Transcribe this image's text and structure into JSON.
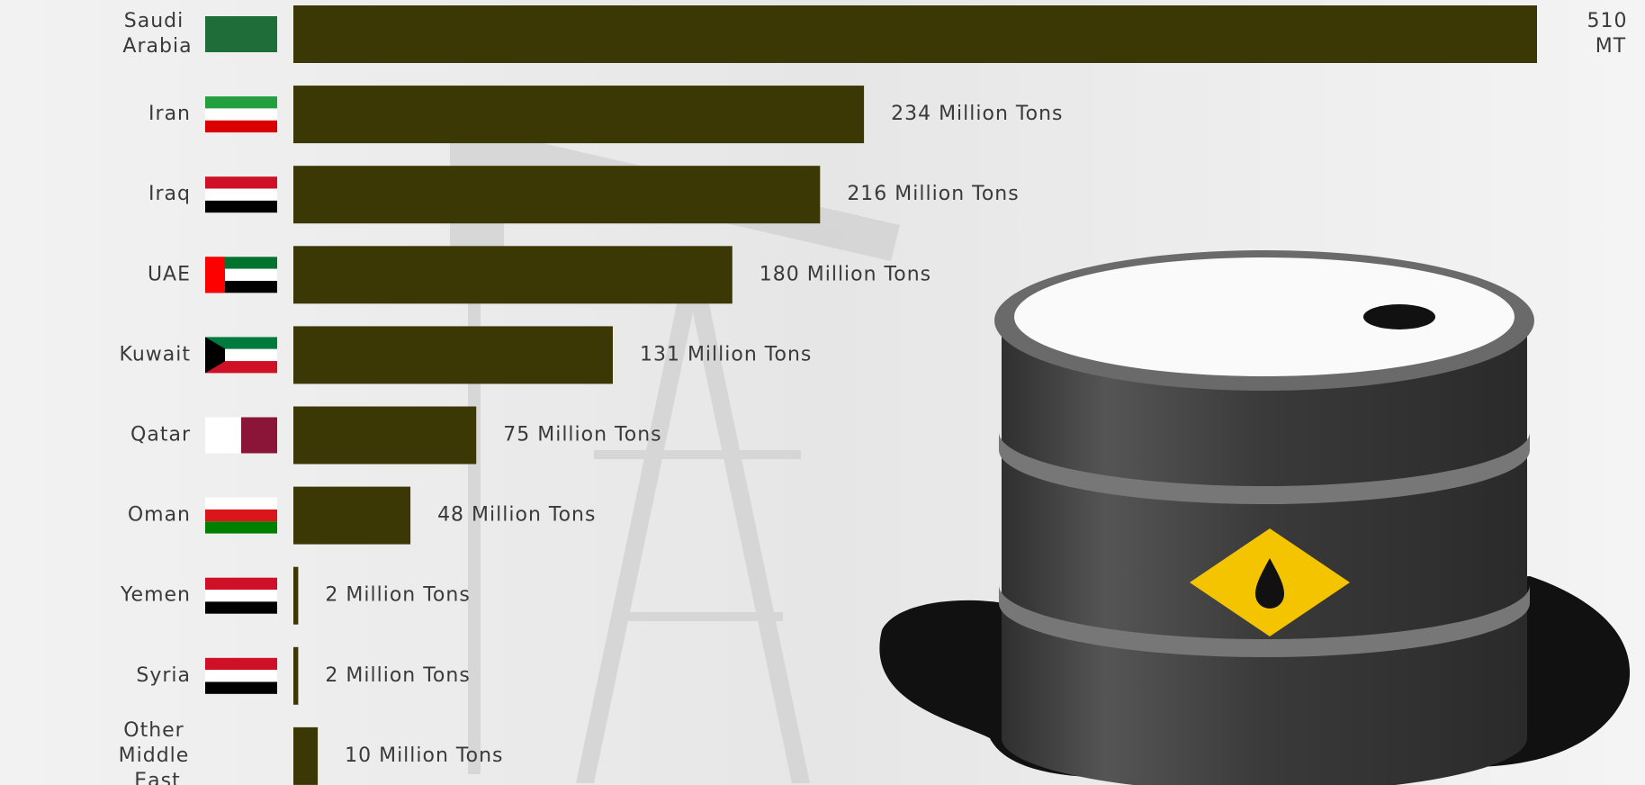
{
  "chart_data": {
    "type": "bar",
    "orientation": "horizontal",
    "categories": [
      "Saudi Arabia",
      "Iran",
      "Iraq",
      "UAE",
      "Kuwait",
      "Qatar",
      "Oman",
      "Yemen",
      "Syria",
      "Other Middle East"
    ],
    "values": [
      510,
      234,
      216,
      180,
      131,
      75,
      48,
      2,
      2,
      10
    ],
    "value_labels": [
      "510 MT",
      "234 Million Tons",
      "216 Million Tons",
      "180 Million Tons",
      "131 Million Tons",
      "75 Million Tons",
      "48 Million Tons",
      "2 Million Tons",
      "2 Million Tons",
      "10 Million Tons"
    ],
    "color": "#3b3806"
  }
}
